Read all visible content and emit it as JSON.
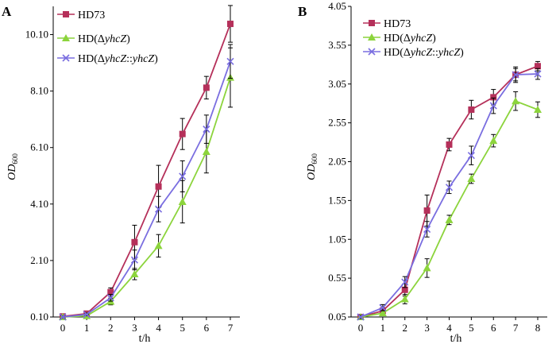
{
  "colors": {
    "HD73": "#b5305a",
    "deltaYhcZ": "#8cd43c",
    "complement": "#7a6ee0",
    "axis": "#000000"
  },
  "legend_parts": {
    "hd73": "HD73",
    "hd_prefix": "HD(",
    "delta": "Δ",
    "yhcz": "yhcZ",
    "close": ")",
    "sep": "::",
    "yhcz2": "yhcZ",
    "close2": ")"
  },
  "chart_data": [
    {
      "type": "line",
      "panel_label": "A",
      "xlabel": "t/h",
      "ylabel": "OD",
      "ylabel_sub": "600",
      "x": [
        0,
        1,
        2,
        3,
        4,
        5,
        6,
        7
      ],
      "xticks": [
        "0",
        "1",
        "2",
        "3",
        "4",
        "5",
        "6",
        "7"
      ],
      "ylim": [
        0.1,
        11.1
      ],
      "yticks": [
        {
          "v": 0.1,
          "label": "0.10"
        },
        {
          "v": 2.1,
          "label": "2.10"
        },
        {
          "v": 4.1,
          "label": "4.10"
        },
        {
          "v": 6.1,
          "label": "6.10"
        },
        {
          "v": 8.1,
          "label": "8.10"
        },
        {
          "v": 10.1,
          "label": "10.10"
        }
      ],
      "legend_position": "top-left",
      "series": [
        {
          "name": "HD73",
          "color": "#b5305a",
          "marker": "square",
          "values": [
            0.12,
            0.22,
            0.98,
            2.75,
            4.72,
            6.58,
            8.22,
            10.48
          ],
          "errors": [
            0.05,
            0.06,
            0.15,
            0.6,
            0.75,
            0.55,
            0.4,
            0.65
          ]
        },
        {
          "name": "HD(ΔyhcZ)",
          "color": "#8cd43c",
          "marker": "triangle",
          "values": [
            0.1,
            0.14,
            0.65,
            1.62,
            2.62,
            4.18,
            5.95,
            8.58
          ],
          "errors": [
            0.04,
            0.05,
            0.12,
            0.2,
            0.4,
            0.75,
            0.75,
            1.05
          ]
        },
        {
          "name": "HD(ΔyhcZ::yhcZ)",
          "color": "#7a6ee0",
          "marker": "x",
          "values": [
            0.1,
            0.19,
            0.78,
            2.12,
            3.92,
            5.08,
            6.75,
            9.15
          ],
          "errors": [
            0.04,
            0.05,
            0.12,
            0.35,
            0.45,
            0.55,
            0.5,
            0.6
          ]
        }
      ]
    },
    {
      "type": "line",
      "panel_label": "B",
      "xlabel": "t/h",
      "ylabel": "OD",
      "ylabel_sub": "600",
      "x": [
        0,
        1,
        2,
        3,
        4,
        5,
        6,
        7,
        8
      ],
      "xticks": [
        "0",
        "1",
        "2",
        "3",
        "4",
        "5",
        "6",
        "7",
        "8"
      ],
      "ylim": [
        0.05,
        4.05
      ],
      "yticks": [
        {
          "v": 0.05,
          "label": "0.05"
        },
        {
          "v": 0.55,
          "label": "0.55"
        },
        {
          "v": 1.05,
          "label": "1.05"
        },
        {
          "v": 1.55,
          "label": "1.55"
        },
        {
          "v": 2.05,
          "label": "2.05"
        },
        {
          "v": 2.55,
          "label": "2.55"
        },
        {
          "v": 3.05,
          "label": "3.05"
        },
        {
          "v": 3.55,
          "label": "3.55"
        },
        {
          "v": 4.05,
          "label": "4.05"
        }
      ],
      "legend_position": "top-left",
      "series": [
        {
          "name": "HD73",
          "color": "#b5305a",
          "marker": "square",
          "values": [
            0.05,
            0.13,
            0.4,
            1.42,
            2.27,
            2.72,
            2.88,
            3.17,
            3.28
          ],
          "errors": [
            0.02,
            0.04,
            0.08,
            0.2,
            0.08,
            0.12,
            0.1,
            0.1,
            0.06
          ]
        },
        {
          "name": "HD(ΔyhcZ)",
          "color": "#8cd43c",
          "marker": "triangle",
          "values": [
            0.05,
            0.1,
            0.28,
            0.68,
            1.3,
            1.83,
            2.32,
            2.83,
            2.72
          ],
          "errors": [
            0.02,
            0.03,
            0.06,
            0.12,
            0.06,
            0.06,
            0.08,
            0.12,
            0.1
          ]
        },
        {
          "name": "HD(ΔyhcZ::yhcZ)",
          "color": "#7a6ee0",
          "marker": "x",
          "values": [
            0.05,
            0.17,
            0.5,
            1.18,
            1.72,
            2.13,
            2.77,
            3.17,
            3.18
          ],
          "errors": [
            0.02,
            0.04,
            0.07,
            0.1,
            0.08,
            0.12,
            0.1,
            0.08,
            0.07
          ]
        }
      ]
    }
  ]
}
